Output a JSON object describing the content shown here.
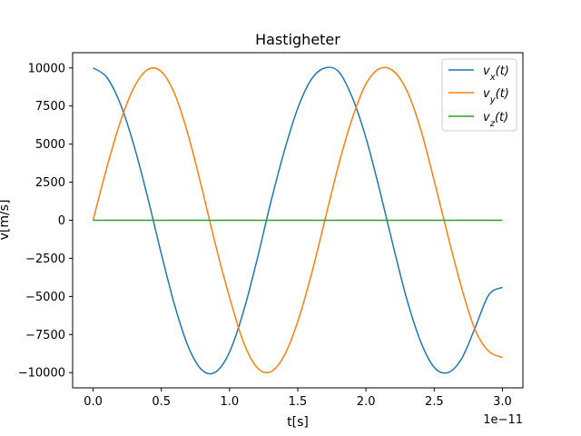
{
  "chart_data": {
    "type": "line",
    "title": "Hastigheter",
    "xlabel": "t[s]",
    "ylabel": "v[m/s]",
    "x_offset_text": "1e−11",
    "xlim": [
      -0.15,
      3.15
    ],
    "ylim": [
      -11000,
      11000
    ],
    "xticks": [
      0,
      0.5,
      1.0,
      1.5,
      2.0,
      2.5,
      3.0
    ],
    "xtick_labels": [
      "0.0",
      "0.5",
      "1.0",
      "1.5",
      "2.0",
      "2.5",
      "3.0"
    ],
    "yticks": [
      -10000,
      -7500,
      -5000,
      -2500,
      0,
      2500,
      5000,
      7500,
      10000
    ],
    "ytick_labels": [
      "−10000",
      "−7500",
      "−5000",
      "−2500",
      "0",
      "2500",
      "5000",
      "7500",
      "10000"
    ],
    "grid": false,
    "legend_position": "top-right",
    "series": [
      {
        "name": "vx(t)",
        "color": "#1f77b4",
        "x": [
          0,
          0.1,
          0.2,
          0.3,
          0.4,
          0.5,
          0.6,
          0.7,
          0.8,
          0.9,
          1.0,
          1.1,
          1.2,
          1.3,
          1.4,
          1.5,
          1.6,
          1.7,
          1.8,
          1.9,
          2.0,
          2.1,
          2.2,
          2.3,
          2.4,
          2.5,
          2.6,
          2.7,
          2.8,
          2.9,
          3.0
        ],
        "y": [
          10000,
          9390,
          7630,
          4900,
          1500,
          -2200,
          -5650,
          -8350,
          -9850,
          -9950,
          -8650,
          -6050,
          -2650,
          1100,
          4500,
          7350,
          9250,
          10000,
          9750,
          8050,
          5400,
          1990,
          -1700,
          -5200,
          -7950,
          -9650,
          -10000,
          -9100,
          -7050,
          -4900,
          -4400
        ]
      },
      {
        "name": "vy(t)",
        "color": "#ff7f0e",
        "x": [
          0,
          0.1,
          0.2,
          0.3,
          0.4,
          0.5,
          0.6,
          0.7,
          0.8,
          0.9,
          1.0,
          1.1,
          1.2,
          1.3,
          1.4,
          1.5,
          1.6,
          1.7,
          1.8,
          1.9,
          2.0,
          2.1,
          2.2,
          2.3,
          2.4,
          2.5,
          2.6,
          2.7,
          2.8,
          2.9,
          3.0
        ],
        "y": [
          0,
          3440,
          6470,
          8720,
          9890,
          9760,
          8250,
          5500,
          2000,
          -1700,
          -5050,
          -7950,
          -9650,
          -9950,
          -8900,
          -6650,
          -3550,
          50,
          3650,
          6700,
          8950,
          9950,
          9800,
          8500,
          6000,
          2600,
          -1000,
          -4400,
          -7200,
          -8600,
          -9000
        ]
      },
      {
        "name": "vz(t)",
        "color": "#2ca02c",
        "x": [
          0,
          3.0
        ],
        "y": [
          0,
          0
        ]
      }
    ]
  }
}
